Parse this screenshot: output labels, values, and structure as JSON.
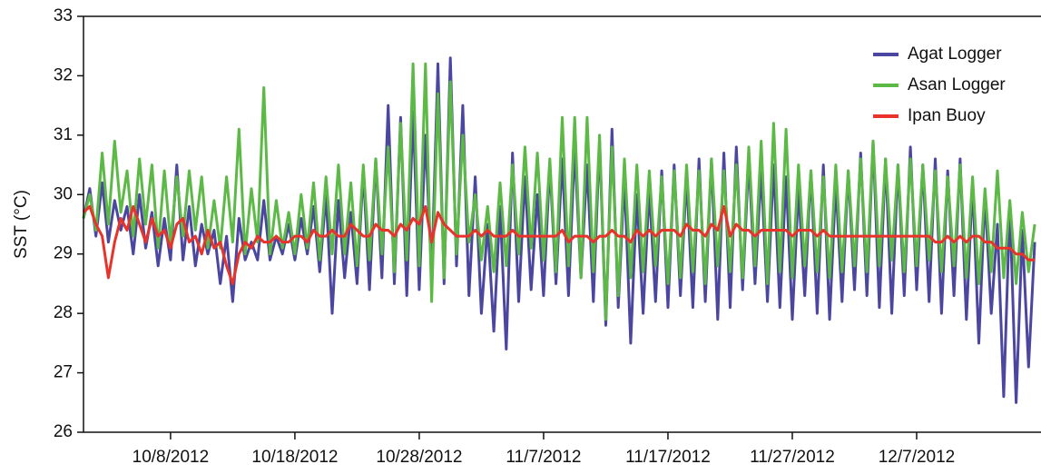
{
  "chart_data": {
    "type": "line",
    "y_label": "SST (°C)",
    "x": [
      "10/1/2012 00:00",
      "10/1/2012 12:00",
      "10/2/2012 00:00",
      "10/2/2012 12:00",
      "10/3/2012 00:00",
      "10/3/2012 12:00",
      "10/4/2012 00:00",
      "10/4/2012 12:00",
      "10/5/2012 00:00",
      "10/5/2012 12:00",
      "10/6/2012 00:00",
      "10/6/2012 12:00",
      "10/7/2012 00:00",
      "10/7/2012 12:00",
      "10/8/2012 00:00",
      "10/8/2012 12:00",
      "10/9/2012 00:00",
      "10/9/2012 12:00",
      "10/10/2012 00:00",
      "10/10/2012 12:00",
      "10/11/2012 00:00",
      "10/11/2012 12:00",
      "10/12/2012 00:00",
      "10/12/2012 12:00",
      "10/13/2012 00:00",
      "10/13/2012 12:00",
      "10/14/2012 00:00",
      "10/14/2012 12:00",
      "10/15/2012 00:00",
      "10/15/2012 12:00",
      "10/16/2012 00:00",
      "10/16/2012 12:00",
      "10/17/2012 00:00",
      "10/17/2012 12:00",
      "10/18/2012 00:00",
      "10/18/2012 12:00",
      "10/19/2012 00:00",
      "10/19/2012 12:00",
      "10/20/2012 00:00",
      "10/20/2012 12:00",
      "10/21/2012 00:00",
      "10/21/2012 12:00",
      "10/22/2012 00:00",
      "10/22/2012 12:00",
      "10/23/2012 00:00",
      "10/23/2012 12:00",
      "10/24/2012 00:00",
      "10/24/2012 12:00",
      "10/25/2012 00:00",
      "10/25/2012 12:00",
      "10/26/2012 00:00",
      "10/26/2012 12:00",
      "10/27/2012 00:00",
      "10/27/2012 12:00",
      "10/28/2012 00:00",
      "10/28/2012 12:00",
      "10/29/2012 00:00",
      "10/29/2012 12:00",
      "10/30/2012 00:00",
      "10/30/2012 12:00",
      "10/31/2012 00:00",
      "10/31/2012 12:00",
      "11/1/2012 00:00",
      "11/1/2012 12:00",
      "11/2/2012 00:00",
      "11/2/2012 12:00",
      "11/3/2012 00:00",
      "11/3/2012 12:00",
      "11/4/2012 00:00",
      "11/4/2012 12:00",
      "11/5/2012 00:00",
      "11/5/2012 12:00",
      "11/6/2012 00:00",
      "11/6/2012 12:00",
      "11/7/2012 00:00",
      "11/7/2012 12:00",
      "11/8/2012 00:00",
      "11/8/2012 12:00",
      "11/9/2012 00:00",
      "11/9/2012 12:00",
      "11/10/2012 00:00",
      "11/10/2012 12:00",
      "11/11/2012 00:00",
      "11/11/2012 12:00",
      "11/12/2012 00:00",
      "11/12/2012 12:00",
      "11/13/2012 00:00",
      "11/13/2012 12:00",
      "11/14/2012 00:00",
      "11/14/2012 12:00",
      "11/15/2012 00:00",
      "11/15/2012 12:00",
      "11/16/2012 00:00",
      "11/16/2012 12:00",
      "11/17/2012 00:00",
      "11/17/2012 12:00",
      "11/18/2012 00:00",
      "11/18/2012 12:00",
      "11/19/2012 00:00",
      "11/19/2012 12:00",
      "11/20/2012 00:00",
      "11/20/2012 12:00",
      "11/21/2012 00:00",
      "11/21/2012 12:00",
      "11/22/2012 00:00",
      "11/22/2012 12:00",
      "11/23/2012 00:00",
      "11/23/2012 12:00",
      "11/24/2012 00:00",
      "11/24/2012 12:00",
      "11/25/2012 00:00",
      "11/25/2012 12:00",
      "11/26/2012 00:00",
      "11/26/2012 12:00",
      "11/27/2012 00:00",
      "11/27/2012 12:00",
      "11/28/2012 00:00",
      "11/28/2012 12:00",
      "11/29/2012 00:00",
      "11/29/2012 12:00",
      "11/30/2012 00:00",
      "11/30/2012 12:00",
      "12/1/2012 00:00",
      "12/1/2012 12:00",
      "12/2/2012 00:00",
      "12/2/2012 12:00",
      "12/3/2012 00:00",
      "12/3/2012 12:00",
      "12/4/2012 00:00",
      "12/4/2012 12:00",
      "12/5/2012 00:00",
      "12/5/2012 12:00",
      "12/6/2012 00:00",
      "12/6/2012 12:00",
      "12/7/2012 00:00",
      "12/7/2012 12:00",
      "12/8/2012 00:00",
      "12/8/2012 12:00",
      "12/9/2012 00:00",
      "12/9/2012 12:00",
      "12/10/2012 00:00",
      "12/10/2012 12:00",
      "12/11/2012 00:00",
      "12/11/2012 12:00",
      "12/12/2012 00:00",
      "12/12/2012 12:00",
      "12/13/2012 00:00",
      "12/13/2012 12:00",
      "12/14/2012 00:00",
      "12/14/2012 12:00",
      "12/15/2012 00:00",
      "12/15/2012 12:00",
      "12/16/2012 00:00",
      "12/16/2012 12:00"
    ],
    "series": [
      {
        "name": "Agat Logger",
        "color": "#4b47a0",
        "values": [
          29.6,
          30.1,
          29.3,
          30.2,
          29.2,
          29.9,
          29.4,
          29.8,
          29.0,
          30.0,
          29.1,
          29.7,
          28.8,
          29.6,
          28.9,
          30.5,
          28.9,
          29.8,
          28.8,
          29.5,
          29.0,
          29.4,
          28.5,
          29.3,
          28.2,
          29.6,
          28.9,
          29.2,
          28.9,
          29.9,
          28.9,
          29.3,
          29.0,
          29.5,
          28.9,
          29.6,
          29.0,
          29.8,
          28.7,
          30.0,
          28.0,
          29.9,
          28.6,
          29.7,
          28.5,
          30.4,
          28.4,
          30.6,
          28.6,
          31.5,
          28.5,
          31.3,
          28.3,
          31.4,
          28.4,
          31.0,
          28.6,
          32.2,
          28.5,
          32.3,
          28.8,
          31.5,
          28.3,
          30.3,
          28.0,
          29.5,
          27.7,
          29.8,
          27.4,
          30.7,
          28.2,
          30.3,
          28.4,
          30.0,
          28.3,
          30.5,
          28.5,
          30.6,
          28.3,
          30.8,
          28.6,
          30.5,
          28.2,
          30.9,
          27.8,
          31.1,
          28.1,
          30.3,
          27.5,
          30.0,
          28.0,
          30.1,
          28.2,
          30.4,
          28.1,
          30.5,
          28.3,
          30.3,
          28.1,
          30.6,
          28.2,
          30.6,
          27.9,
          30.7,
          28.1,
          30.8,
          28.4,
          30.6,
          28.5,
          30.4,
          28.2,
          30.5,
          28.1,
          30.3,
          27.9,
          30.1,
          28.3,
          30.4,
          28.0,
          30.5,
          27.9,
          30.2,
          28.2,
          30.4,
          28.4,
          30.7,
          28.3,
          30.9,
          28.1,
          30.6,
          28.0,
          30.5,
          28.3,
          30.8,
          28.4,
          30.5,
          28.2,
          30.6,
          28.0,
          30.4,
          28.3,
          30.6,
          27.9,
          30.2,
          27.5,
          30.0,
          28.0,
          29.5,
          26.6,
          29.8,
          26.5,
          29.4,
          27.1,
          29.2
        ]
      },
      {
        "name": "Asan Logger",
        "color": "#5cb946",
        "values": [
          29.6,
          30.0,
          29.4,
          30.7,
          29.5,
          30.9,
          29.7,
          30.4,
          29.3,
          30.6,
          29.5,
          30.5,
          29.1,
          30.4,
          29.2,
          30.3,
          29.3,
          30.4,
          29.4,
          30.3,
          29.1,
          29.9,
          29.1,
          30.3,
          29.2,
          31.1,
          29.0,
          30.1,
          29.2,
          31.8,
          29.0,
          29.9,
          29.1,
          29.7,
          29.0,
          30.0,
          29.1,
          30.2,
          28.9,
          30.3,
          29.0,
          30.5,
          29.0,
          30.2,
          28.8,
          30.5,
          28.9,
          30.6,
          29.0,
          30.8,
          28.7,
          31.2,
          28.9,
          32.2,
          28.8,
          32.2,
          28.2,
          31.7,
          28.6,
          31.9,
          29.0,
          31.0,
          29.2,
          30.0,
          28.9,
          29.8,
          28.7,
          30.2,
          28.8,
          30.5,
          29.0,
          30.8,
          29.1,
          30.7,
          28.9,
          30.6,
          28.7,
          31.3,
          28.8,
          31.3,
          28.6,
          31.3,
          28.7,
          31.0,
          27.9,
          30.8,
          28.3,
          30.6,
          28.6,
          30.5,
          28.7,
          30.4,
          28.8,
          30.3,
          28.5,
          30.4,
          28.6,
          30.5,
          28.7,
          30.4,
          28.5,
          30.6,
          28.8,
          30.4,
          28.7,
          30.5,
          28.6,
          30.8,
          28.8,
          30.9,
          28.5,
          31.2,
          28.7,
          31.1,
          28.6,
          30.5,
          28.8,
          30.4,
          28.7,
          30.3,
          28.6,
          30.5,
          28.7,
          30.4,
          28.8,
          30.6,
          28.7,
          30.9,
          28.8,
          30.6,
          28.9,
          30.5,
          28.7,
          30.6,
          28.8,
          30.5,
          28.9,
          30.4,
          28.7,
          30.3,
          28.8,
          30.5,
          28.6,
          30.3,
          28.5,
          30.1,
          28.7,
          30.4,
          28.6,
          29.9,
          28.5,
          29.7,
          28.7,
          29.5
        ]
      },
      {
        "name": "Ipan Buoy",
        "color": "#e8322a",
        "values": [
          29.7,
          29.8,
          29.5,
          29.3,
          28.6,
          29.2,
          29.6,
          29.4,
          29.8,
          29.5,
          29.2,
          29.6,
          29.3,
          29.4,
          29.1,
          29.5,
          29.6,
          29.2,
          29.3,
          29.0,
          29.4,
          29.1,
          29.2,
          28.8,
          28.5,
          29.0,
          29.2,
          29.1,
          29.3,
          29.2,
          29.2,
          29.3,
          29.2,
          29.2,
          29.3,
          29.3,
          29.2,
          29.4,
          29.3,
          29.3,
          29.4,
          29.3,
          29.3,
          29.5,
          29.4,
          29.3,
          29.3,
          29.5,
          29.4,
          29.4,
          29.3,
          29.5,
          29.4,
          29.6,
          29.5,
          29.8,
          29.2,
          29.7,
          29.5,
          29.4,
          29.3,
          29.3,
          29.3,
          29.4,
          29.3,
          29.4,
          29.3,
          29.3,
          29.3,
          29.4,
          29.3,
          29.3,
          29.3,
          29.3,
          29.3,
          29.3,
          29.3,
          29.4,
          29.2,
          29.3,
          29.3,
          29.3,
          29.2,
          29.3,
          29.3,
          29.4,
          29.3,
          29.3,
          29.2,
          29.4,
          29.3,
          29.4,
          29.3,
          29.4,
          29.4,
          29.4,
          29.3,
          29.5,
          29.4,
          29.4,
          29.3,
          29.5,
          29.4,
          29.8,
          29.3,
          29.5,
          29.4,
          29.4,
          29.3,
          29.4,
          29.4,
          29.4,
          29.4,
          29.4,
          29.3,
          29.4,
          29.4,
          29.4,
          29.3,
          29.4,
          29.3,
          29.3,
          29.3,
          29.3,
          29.3,
          29.3,
          29.3,
          29.3,
          29.3,
          29.3,
          29.3,
          29.3,
          29.3,
          29.3,
          29.3,
          29.3,
          29.3,
          29.2,
          29.2,
          29.3,
          29.2,
          29.3,
          29.2,
          29.3,
          29.3,
          29.2,
          29.2,
          29.1,
          29.1,
          29.1,
          29.0,
          29.0,
          28.9,
          28.9
        ]
      }
    ],
    "xlim": [
      "10/1/2012",
      "12/17/2012"
    ],
    "xticks": [
      "10/8/2012",
      "10/18/2012",
      "10/28/2012",
      "11/7/2012",
      "11/17/2012",
      "11/27/2012",
      "12/7/2012"
    ],
    "ylim": [
      26,
      33
    ],
    "yticks": [
      26,
      27,
      28,
      29,
      30,
      31,
      32,
      33
    ],
    "legend": "upper right"
  }
}
